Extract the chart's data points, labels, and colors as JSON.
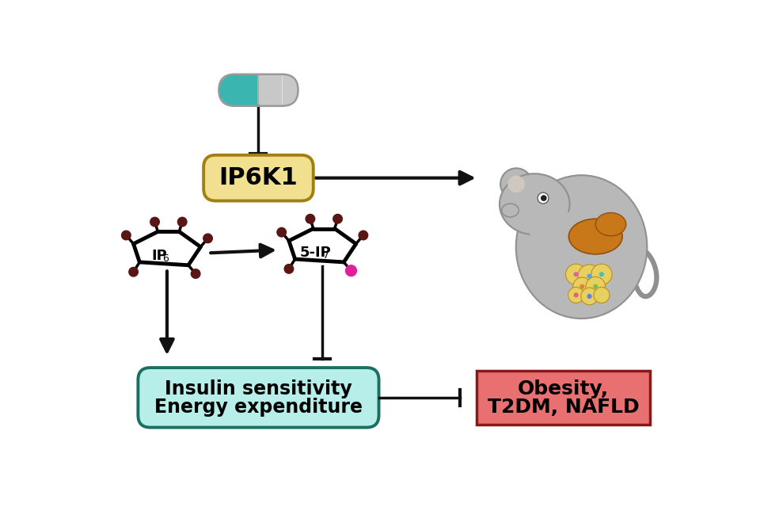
{
  "bg_color": "#ffffff",
  "pill_left_color": "#3ab5b0",
  "pill_right_color": "#c8c8c8",
  "pill_outline": "#999999",
  "ip6k1_box_fill": "#f0e090",
  "ip6k1_box_outline": "#a08010",
  "ip6k1_text": "IP6K1",
  "node_color": "#5a1515",
  "pink_node": "#e0209a",
  "arrow_color": "#111111",
  "inhibit_color": "#111111",
  "insulin_box_fill": "#b8eeea",
  "insulin_box_outline": "#1a7060",
  "insulin_text_line1": "Insulin sensitivity",
  "insulin_text_line2": "Energy expenditure",
  "obesity_box_fill": "#e87070",
  "obesity_box_outline": "#8a1818",
  "obesity_text_line1": "Obesity,",
  "obesity_text_line2": "T2DM, NAFLD",
  "mouse_body_color": "#b8b8b8",
  "mouse_outline": "#909090",
  "liver_color": "#c87818",
  "fat_color": "#e8d060",
  "font_size_box": 17,
  "font_size_ip6k1": 22
}
